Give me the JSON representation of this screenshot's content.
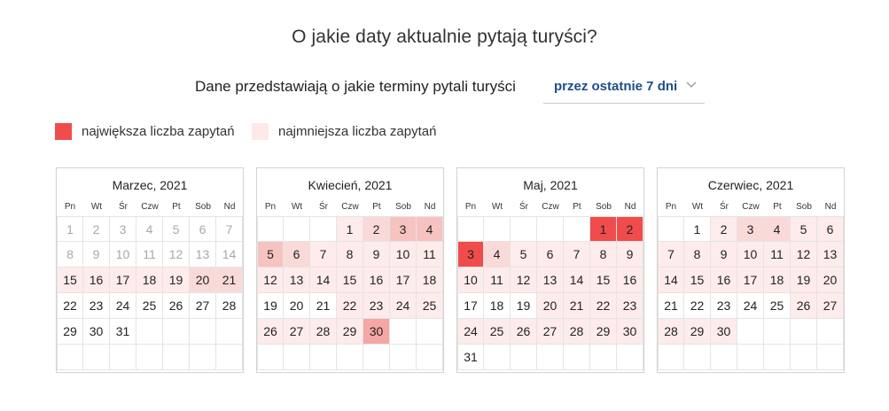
{
  "header": {
    "title": "O jakie daty aktualnie pytają turyści?"
  },
  "filter": {
    "label": "Dane przedstawiają o jakie terminy pytali turyści",
    "selected": "przez ostatnie 7 dni"
  },
  "legend": {
    "max_label": "największa liczba zapytań",
    "min_label": "najmniejsza liczba zapytań",
    "max_color": "#f04c4c",
    "min_color": "#fde9e8"
  },
  "colors": {
    "white": "#ffffff",
    "l1": "#fdeceb",
    "l2": "#fadad8",
    "l3": "#f7c3c1",
    "l4": "#f6a6a4",
    "l5": "#f04c4c",
    "muted": "#a8a8a8"
  },
  "weekdays": [
    "Pn",
    "Wt",
    "Śr",
    "Czw",
    "Pt",
    "Sob",
    "Nd"
  ],
  "calendars": [
    {
      "title": "Marzec, 2021",
      "weeks": [
        [
          {
            "d": "1",
            "lv": "white",
            "m": 1
          },
          {
            "d": "2",
            "lv": "white",
            "m": 1
          },
          {
            "d": "3",
            "lv": "white",
            "m": 1
          },
          {
            "d": "4",
            "lv": "white",
            "m": 1
          },
          {
            "d": "5",
            "lv": "white",
            "m": 1
          },
          {
            "d": "6",
            "lv": "white",
            "m": 1
          },
          {
            "d": "7",
            "lv": "white",
            "m": 1
          }
        ],
        [
          {
            "d": "8",
            "lv": "white",
            "m": 1
          },
          {
            "d": "9",
            "lv": "white",
            "m": 1
          },
          {
            "d": "10",
            "lv": "white",
            "m": 1
          },
          {
            "d": "11",
            "lv": "white",
            "m": 1
          },
          {
            "d": "12",
            "lv": "white",
            "m": 1
          },
          {
            "d": "13",
            "lv": "white",
            "m": 1
          },
          {
            "d": "14",
            "lv": "white",
            "m": 1
          }
        ],
        [
          {
            "d": "15",
            "lv": "l1"
          },
          {
            "d": "16",
            "lv": "l1"
          },
          {
            "d": "17",
            "lv": "l1"
          },
          {
            "d": "18",
            "lv": "l1"
          },
          {
            "d": "19",
            "lv": "l1"
          },
          {
            "d": "20",
            "lv": "l2"
          },
          {
            "d": "21",
            "lv": "l2"
          }
        ],
        [
          {
            "d": "22",
            "lv": "white"
          },
          {
            "d": "23",
            "lv": "white"
          },
          {
            "d": "24",
            "lv": "white"
          },
          {
            "d": "25",
            "lv": "white"
          },
          {
            "d": "26",
            "lv": "white"
          },
          {
            "d": "27",
            "lv": "white"
          },
          {
            "d": "28",
            "lv": "white"
          }
        ],
        [
          {
            "d": "29",
            "lv": "white"
          },
          {
            "d": "30",
            "lv": "white"
          },
          {
            "d": "31",
            "lv": "white"
          },
          {
            "d": "",
            "lv": "white"
          },
          {
            "d": "",
            "lv": "white"
          },
          {
            "d": "",
            "lv": "white"
          },
          {
            "d": "",
            "lv": "white"
          }
        ],
        [
          {
            "d": "",
            "lv": "white"
          },
          {
            "d": "",
            "lv": "white"
          },
          {
            "d": "",
            "lv": "white"
          },
          {
            "d": "",
            "lv": "white"
          },
          {
            "d": "",
            "lv": "white"
          },
          {
            "d": "",
            "lv": "white"
          },
          {
            "d": "",
            "lv": "white"
          }
        ]
      ]
    },
    {
      "title": "Kwiecień, 2021",
      "weeks": [
        [
          {
            "d": "",
            "lv": "white"
          },
          {
            "d": "",
            "lv": "white"
          },
          {
            "d": "",
            "lv": "white"
          },
          {
            "d": "1",
            "lv": "l1"
          },
          {
            "d": "2",
            "lv": "l2"
          },
          {
            "d": "3",
            "lv": "l3"
          },
          {
            "d": "4",
            "lv": "l3"
          }
        ],
        [
          {
            "d": "5",
            "lv": "l3"
          },
          {
            "d": "6",
            "lv": "l2"
          },
          {
            "d": "7",
            "lv": "l1"
          },
          {
            "d": "8",
            "lv": "l1"
          },
          {
            "d": "9",
            "lv": "l1"
          },
          {
            "d": "10",
            "lv": "l1"
          },
          {
            "d": "11",
            "lv": "l1"
          }
        ],
        [
          {
            "d": "12",
            "lv": "l1"
          },
          {
            "d": "13",
            "lv": "l1"
          },
          {
            "d": "14",
            "lv": "l1"
          },
          {
            "d": "15",
            "lv": "l1"
          },
          {
            "d": "16",
            "lv": "l1"
          },
          {
            "d": "17",
            "lv": "l1"
          },
          {
            "d": "18",
            "lv": "l1"
          }
        ],
        [
          {
            "d": "19",
            "lv": "white"
          },
          {
            "d": "20",
            "lv": "white"
          },
          {
            "d": "21",
            "lv": "white"
          },
          {
            "d": "22",
            "lv": "l1"
          },
          {
            "d": "23",
            "lv": "l1"
          },
          {
            "d": "24",
            "lv": "l1"
          },
          {
            "d": "25",
            "lv": "l1"
          }
        ],
        [
          {
            "d": "26",
            "lv": "l1"
          },
          {
            "d": "27",
            "lv": "l1"
          },
          {
            "d": "28",
            "lv": "l1"
          },
          {
            "d": "29",
            "lv": "l1"
          },
          {
            "d": "30",
            "lv": "l4"
          },
          {
            "d": "",
            "lv": "white"
          },
          {
            "d": "",
            "lv": "white"
          }
        ],
        [
          {
            "d": "",
            "lv": "white"
          },
          {
            "d": "",
            "lv": "white"
          },
          {
            "d": "",
            "lv": "white"
          },
          {
            "d": "",
            "lv": "white"
          },
          {
            "d": "",
            "lv": "white"
          },
          {
            "d": "",
            "lv": "white"
          },
          {
            "d": "",
            "lv": "white"
          }
        ]
      ]
    },
    {
      "title": "Maj, 2021",
      "weeks": [
        [
          {
            "d": "",
            "lv": "white"
          },
          {
            "d": "",
            "lv": "white"
          },
          {
            "d": "",
            "lv": "white"
          },
          {
            "d": "",
            "lv": "white"
          },
          {
            "d": "",
            "lv": "white"
          },
          {
            "d": "1",
            "lv": "l5"
          },
          {
            "d": "2",
            "lv": "l5"
          }
        ],
        [
          {
            "d": "3",
            "lv": "l5"
          },
          {
            "d": "4",
            "lv": "l2"
          },
          {
            "d": "5",
            "lv": "l1"
          },
          {
            "d": "6",
            "lv": "l1"
          },
          {
            "d": "7",
            "lv": "l1"
          },
          {
            "d": "8",
            "lv": "l1"
          },
          {
            "d": "9",
            "lv": "l1"
          }
        ],
        [
          {
            "d": "10",
            "lv": "l1"
          },
          {
            "d": "11",
            "lv": "l1"
          },
          {
            "d": "12",
            "lv": "l1"
          },
          {
            "d": "13",
            "lv": "l1"
          },
          {
            "d": "14",
            "lv": "l1"
          },
          {
            "d": "15",
            "lv": "l1"
          },
          {
            "d": "16",
            "lv": "l1"
          }
        ],
        [
          {
            "d": "17",
            "lv": "white"
          },
          {
            "d": "18",
            "lv": "white"
          },
          {
            "d": "19",
            "lv": "white"
          },
          {
            "d": "20",
            "lv": "l1"
          },
          {
            "d": "21",
            "lv": "l1"
          },
          {
            "d": "22",
            "lv": "l1"
          },
          {
            "d": "23",
            "lv": "l1"
          }
        ],
        [
          {
            "d": "24",
            "lv": "l1"
          },
          {
            "d": "25",
            "lv": "l1"
          },
          {
            "d": "26",
            "lv": "l1"
          },
          {
            "d": "27",
            "lv": "l1"
          },
          {
            "d": "28",
            "lv": "l1"
          },
          {
            "d": "29",
            "lv": "l1"
          },
          {
            "d": "30",
            "lv": "l1"
          }
        ],
        [
          {
            "d": "31",
            "lv": "white"
          },
          {
            "d": "",
            "lv": "white"
          },
          {
            "d": "",
            "lv": "white"
          },
          {
            "d": "",
            "lv": "white"
          },
          {
            "d": "",
            "lv": "white"
          },
          {
            "d": "",
            "lv": "white"
          },
          {
            "d": "",
            "lv": "white"
          }
        ]
      ]
    },
    {
      "title": "Czerwiec, 2021",
      "weeks": [
        [
          {
            "d": "",
            "lv": "white"
          },
          {
            "d": "1",
            "lv": "white"
          },
          {
            "d": "2",
            "lv": "l1"
          },
          {
            "d": "3",
            "lv": "l2"
          },
          {
            "d": "4",
            "lv": "l2"
          },
          {
            "d": "5",
            "lv": "l1"
          },
          {
            "d": "6",
            "lv": "l1"
          }
        ],
        [
          {
            "d": "7",
            "lv": "l1"
          },
          {
            "d": "8",
            "lv": "l1"
          },
          {
            "d": "9",
            "lv": "l1"
          },
          {
            "d": "10",
            "lv": "l1"
          },
          {
            "d": "11",
            "lv": "l1"
          },
          {
            "d": "12",
            "lv": "l1"
          },
          {
            "d": "13",
            "lv": "l1"
          }
        ],
        [
          {
            "d": "14",
            "lv": "l1"
          },
          {
            "d": "15",
            "lv": "l1"
          },
          {
            "d": "16",
            "lv": "l1"
          },
          {
            "d": "17",
            "lv": "l1"
          },
          {
            "d": "18",
            "lv": "l1"
          },
          {
            "d": "19",
            "lv": "l1"
          },
          {
            "d": "20",
            "lv": "l1"
          }
        ],
        [
          {
            "d": "21",
            "lv": "white"
          },
          {
            "d": "22",
            "lv": "white"
          },
          {
            "d": "23",
            "lv": "white"
          },
          {
            "d": "24",
            "lv": "white"
          },
          {
            "d": "25",
            "lv": "white"
          },
          {
            "d": "26",
            "lv": "l1"
          },
          {
            "d": "27",
            "lv": "l1"
          }
        ],
        [
          {
            "d": "28",
            "lv": "l1"
          },
          {
            "d": "29",
            "lv": "l1"
          },
          {
            "d": "30",
            "lv": "l1"
          },
          {
            "d": "",
            "lv": "white"
          },
          {
            "d": "",
            "lv": "white"
          },
          {
            "d": "",
            "lv": "white"
          },
          {
            "d": "",
            "lv": "white"
          }
        ],
        [
          {
            "d": "",
            "lv": "white"
          },
          {
            "d": "",
            "lv": "white"
          },
          {
            "d": "",
            "lv": "white"
          },
          {
            "d": "",
            "lv": "white"
          },
          {
            "d": "",
            "lv": "white"
          },
          {
            "d": "",
            "lv": "white"
          },
          {
            "d": "",
            "lv": "white"
          }
        ]
      ]
    }
  ]
}
